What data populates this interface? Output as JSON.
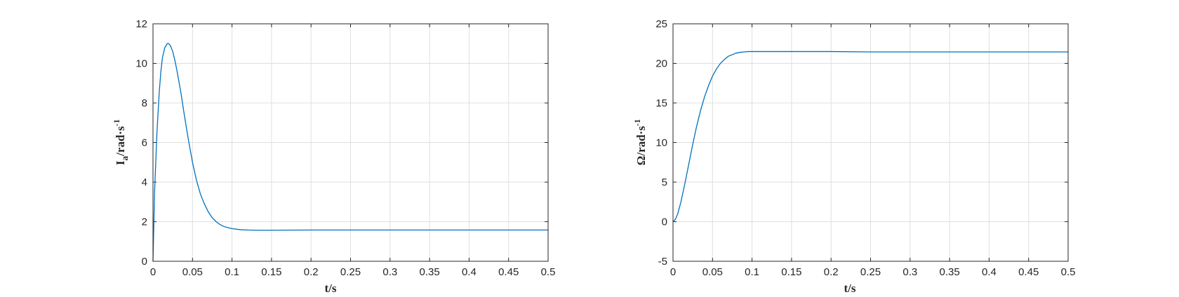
{
  "colors": {
    "series": "#0072bd",
    "grid": "#dfdfdf",
    "axes": "#262626"
  },
  "chart_data": [
    {
      "type": "line",
      "xlabel": "t/s",
      "ylabel_main": "I",
      "ylabel_sub": "a",
      "ylabel_rest": "/rad·s",
      "ylabel_sup": "-1",
      "xlim": [
        0,
        0.5
      ],
      "ylim": [
        0,
        12
      ],
      "xticks": [
        "0",
        "0.05",
        "0.1",
        "0.15",
        "0.2",
        "0.25",
        "0.3",
        "0.35",
        "0.4",
        "0.45",
        "0.5"
      ],
      "yticks": [
        "0",
        "2",
        "4",
        "6",
        "8",
        "10",
        "12"
      ],
      "grid": true,
      "series": [
        {
          "x": [
            0,
            0.002,
            0.005,
            0.008,
            0.01,
            0.012,
            0.015,
            0.018,
            0.02,
            0.022,
            0.025,
            0.028,
            0.03,
            0.035,
            0.04,
            0.045,
            0.05,
            0.055,
            0.06,
            0.065,
            0.07,
            0.075,
            0.08,
            0.085,
            0.09,
            0.095,
            0.1,
            0.11,
            0.12,
            0.13,
            0.14,
            0.15,
            0.2,
            0.25,
            0.3,
            0.35,
            0.4,
            0.45,
            0.5
          ],
          "y": [
            0,
            3.5,
            6.5,
            8.6,
            9.6,
            10.3,
            10.8,
            11.0,
            11.0,
            10.9,
            10.6,
            10.1,
            9.7,
            8.6,
            7.3,
            6.1,
            5.0,
            4.1,
            3.4,
            2.9,
            2.5,
            2.2,
            2.0,
            1.85,
            1.75,
            1.7,
            1.65,
            1.6,
            1.58,
            1.57,
            1.57,
            1.57,
            1.58,
            1.58,
            1.58,
            1.58,
            1.58,
            1.58,
            1.58
          ]
        }
      ]
    },
    {
      "type": "line",
      "xlabel": "t/s",
      "ylabel_main": "Ω/rad·s",
      "ylabel_sup": "-1",
      "xlim": [
        0,
        0.5
      ],
      "ylim": [
        -5,
        25
      ],
      "xticks": [
        "0",
        "0.05",
        "0.1",
        "0.15",
        "0.2",
        "0.25",
        "0.3",
        "0.35",
        "0.4",
        "0.45",
        "0.5"
      ],
      "yticks": [
        "-5",
        "0",
        "5",
        "10",
        "15",
        "20",
        "25"
      ],
      "grid": true,
      "series": [
        {
          "x": [
            0,
            0.003,
            0.006,
            0.01,
            0.015,
            0.02,
            0.025,
            0.03,
            0.035,
            0.04,
            0.045,
            0.05,
            0.055,
            0.06,
            0.065,
            0.07,
            0.075,
            0.08,
            0.085,
            0.09,
            0.095,
            0.1,
            0.11,
            0.12,
            0.13,
            0.15,
            0.2,
            0.25,
            0.3,
            0.35,
            0.4,
            0.45,
            0.5
          ],
          "y": [
            0,
            0.3,
            1.0,
            2.5,
            4.8,
            7.3,
            9.8,
            12.1,
            14.1,
            15.8,
            17.2,
            18.4,
            19.3,
            20.0,
            20.5,
            20.9,
            21.1,
            21.3,
            21.4,
            21.45,
            21.5,
            21.5,
            21.5,
            21.5,
            21.5,
            21.5,
            21.5,
            21.45,
            21.45,
            21.45,
            21.45,
            21.45,
            21.45
          ]
        }
      ]
    }
  ]
}
